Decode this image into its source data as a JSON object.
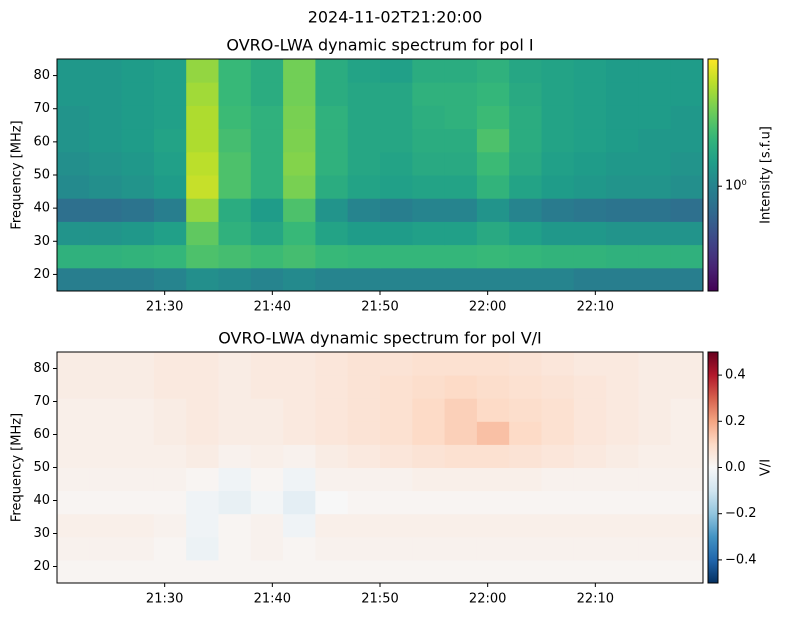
{
  "title": "2024-11-02T21:20:00",
  "chart_data": [
    {
      "type": "heatmap",
      "title": "OVRO-LWA dynamic spectrum for pol I",
      "y_label": "Frequency [MHz]",
      "x": [
        "21:20",
        "21:23",
        "21:26",
        "21:29",
        "21:32",
        "21:35",
        "21:38",
        "21:41",
        "21:44",
        "21:47",
        "21:50",
        "21:53",
        "21:56",
        "21:59",
        "22:02",
        "22:05",
        "22:08",
        "22:11",
        "22:14",
        "22:17"
      ],
      "xlim": [
        "21:20",
        "22:20"
      ],
      "xticks": [
        "21:30",
        "21:40",
        "21:50",
        "22:00",
        "22:10"
      ],
      "y": [
        15,
        22,
        29,
        36,
        43,
        50,
        57,
        64,
        71,
        78
      ],
      "ylim": [
        15,
        85
      ],
      "yticks": [
        20,
        30,
        40,
        50,
        60,
        70,
        80
      ],
      "z": [
        [
          0.9,
          0.9,
          0.9,
          1,
          1.2,
          1.1,
          1,
          1.1,
          1,
          1,
          1,
          1,
          1,
          1,
          1,
          1,
          0.9,
          0.9,
          0.9,
          0.9
        ],
        [
          2.2,
          2.2,
          2.3,
          2.4,
          3,
          2.8,
          2.6,
          2.8,
          2.5,
          2.4,
          2.4,
          2.4,
          2.4,
          2.5,
          2.4,
          2.3,
          2.3,
          2.2,
          2.2,
          2.2
        ],
        [
          1.3,
          1.3,
          1.4,
          1.6,
          3.5,
          2.2,
          1.8,
          2.5,
          1.7,
          1.5,
          1.5,
          1.6,
          1.6,
          1.9,
          1.6,
          1.4,
          1.4,
          1.3,
          1.3,
          1.3
        ],
        [
          0.7,
          0.7,
          0.75,
          0.9,
          5,
          2,
          1.5,
          3,
          1.3,
          1,
          0.9,
          1,
          1,
          1.3,
          1,
          0.85,
          0.8,
          0.75,
          0.75,
          0.7
        ],
        [
          1.1,
          1.2,
          1.3,
          1.5,
          7,
          3,
          2.2,
          4.2,
          2,
          1.7,
          1.6,
          1.7,
          1.7,
          2.3,
          1.7,
          1.5,
          1.4,
          1.3,
          1.3,
          1.2
        ],
        [
          1.2,
          1.3,
          1.4,
          1.6,
          6.5,
          3,
          2.2,
          4.5,
          2.2,
          1.8,
          1.7,
          1.9,
          1.9,
          2.6,
          1.9,
          1.6,
          1.5,
          1.4,
          1.4,
          1.3
        ],
        [
          1.3,
          1.4,
          1.5,
          1.7,
          6,
          2.8,
          2.2,
          4.3,
          2.2,
          1.8,
          1.8,
          2,
          2,
          3,
          2,
          1.7,
          1.6,
          1.5,
          1.4,
          1.4
        ],
        [
          1.3,
          1.4,
          1.5,
          1.6,
          6,
          2.6,
          2.2,
          4.2,
          2.2,
          1.8,
          1.8,
          2.1,
          2.2,
          2.6,
          2,
          1.7,
          1.6,
          1.5,
          1.5,
          1.4
        ],
        [
          1.4,
          1.4,
          1.5,
          1.6,
          5.5,
          2.5,
          2,
          4,
          2,
          1.8,
          1.8,
          2.2,
          2.2,
          2.4,
          1.9,
          1.7,
          1.6,
          1.5,
          1.5,
          1.5
        ],
        [
          1.4,
          1.4,
          1.5,
          1.6,
          5,
          2.5,
          2,
          4,
          2,
          1.7,
          1.6,
          2,
          2,
          2.2,
          1.8,
          1.7,
          1.6,
          1.5,
          1.5,
          1.5
        ]
      ],
      "colormap": "viridis",
      "color_scale": "log",
      "clim": [
        0.15,
        10
      ],
      "cticks": [
        {
          "value": 1,
          "label": "10⁰"
        }
      ],
      "colorbar_label": "Intensity [s.f.u]"
    },
    {
      "type": "heatmap",
      "title": "OVRO-LWA dynamic spectrum for pol V/I",
      "y_label": "Frequency [MHz]",
      "x": [
        "21:20",
        "21:23",
        "21:26",
        "21:29",
        "21:32",
        "21:35",
        "21:38",
        "21:41",
        "21:44",
        "21:47",
        "21:50",
        "21:53",
        "21:56",
        "21:59",
        "22:02",
        "22:05",
        "22:08",
        "22:11",
        "22:14",
        "22:17"
      ],
      "xlim": [
        "21:20",
        "22:20"
      ],
      "xticks": [
        "21:30",
        "21:40",
        "21:50",
        "22:00",
        "22:10"
      ],
      "y": [
        15,
        22,
        29,
        36,
        43,
        50,
        57,
        64,
        71,
        78
      ],
      "ylim": [
        15,
        85
      ],
      "yticks": [
        20,
        30,
        40,
        50,
        60,
        70,
        80
      ],
      "z": [
        [
          0.01,
          0.01,
          0.01,
          0.01,
          0.01,
          0.01,
          0.01,
          0.01,
          0.01,
          0.01,
          0.01,
          0.01,
          0.01,
          0.01,
          0.01,
          0.01,
          0.01,
          0.01,
          0.01,
          0.01
        ],
        [
          0.02,
          0.02,
          0.02,
          0.01,
          -0.03,
          0.01,
          0.02,
          0.01,
          0.02,
          0.02,
          0.02,
          0.02,
          0.02,
          0.02,
          0.02,
          0.02,
          0.02,
          0.02,
          0.02,
          0.02
        ],
        [
          0.03,
          0.03,
          0.03,
          0.02,
          -0.02,
          0.01,
          0.02,
          -0.02,
          0.03,
          0.03,
          0.03,
          0.03,
          0.03,
          0.03,
          0.03,
          0.03,
          0.03,
          0.03,
          0.03,
          0.03
        ],
        [
          0.01,
          0.01,
          0.01,
          0.01,
          -0.02,
          -0.04,
          -0.01,
          -0.05,
          0,
          0.01,
          0.01,
          0.01,
          0.01,
          0.01,
          0.01,
          0.01,
          0.01,
          0.01,
          0.01,
          0.01
        ],
        [
          0.02,
          0.02,
          0.02,
          0.02,
          0.01,
          -0.02,
          0.01,
          -0.02,
          0.02,
          0.02,
          0.02,
          0.03,
          0.03,
          0.03,
          0.03,
          0.02,
          0.02,
          0.02,
          0.02,
          0.02
        ],
        [
          0.03,
          0.03,
          0.03,
          0.03,
          0.04,
          0.02,
          0.03,
          0.02,
          0.04,
          0.05,
          0.06,
          0.07,
          0.08,
          0.08,
          0.07,
          0.06,
          0.05,
          0.04,
          0.03,
          0.03
        ],
        [
          0.03,
          0.03,
          0.03,
          0.04,
          0.05,
          0.04,
          0.04,
          0.05,
          0.06,
          0.07,
          0.08,
          0.1,
          0.12,
          0.15,
          0.1,
          0.08,
          0.06,
          0.05,
          0.04,
          0.03
        ],
        [
          0.03,
          0.03,
          0.03,
          0.04,
          0.05,
          0.04,
          0.04,
          0.05,
          0.06,
          0.07,
          0.08,
          0.1,
          0.12,
          0.1,
          0.09,
          0.08,
          0.06,
          0.05,
          0.04,
          0.03
        ],
        [
          0.04,
          0.04,
          0.04,
          0.05,
          0.05,
          0.04,
          0.05,
          0.05,
          0.06,
          0.07,
          0.08,
          0.09,
          0.1,
          0.09,
          0.08,
          0.07,
          0.06,
          0.05,
          0.04,
          0.04
        ],
        [
          0.04,
          0.04,
          0.04,
          0.05,
          0.05,
          0.04,
          0.05,
          0.05,
          0.06,
          0.07,
          0.07,
          0.08,
          0.08,
          0.08,
          0.07,
          0.06,
          0.05,
          0.05,
          0.04,
          0.04
        ]
      ],
      "colormap": "RdBu_r",
      "color_scale": "linear",
      "clim": [
        -0.5,
        0.5
      ],
      "cticks": [
        {
          "value": -0.4,
          "label": "−0.4"
        },
        {
          "value": -0.2,
          "label": "−0.2"
        },
        {
          "value": 0,
          "label": "0.0"
        },
        0.2,
        0.4
      ],
      "colorbar_label": "V/I"
    }
  ]
}
